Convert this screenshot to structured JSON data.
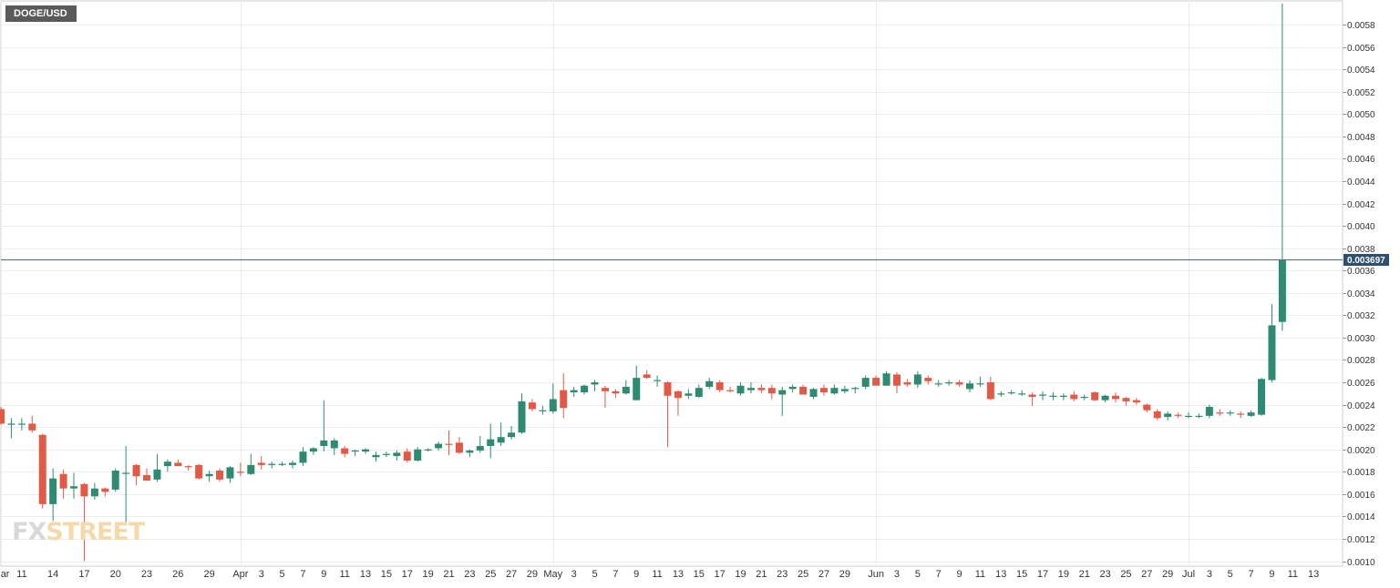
{
  "chart_data": {
    "type": "candlestick",
    "symbol": "DOGE/USD",
    "current_price": "0.003697",
    "ylim": [
      0.001,
      0.006
    ],
    "y_ticks": [
      "0.0010",
      "0.0012",
      "0.0014",
      "0.0016",
      "0.0018",
      "0.0020",
      "0.0022",
      "0.0024",
      "0.0026",
      "0.0028",
      "0.0030",
      "0.0032",
      "0.0034",
      "0.0036",
      "0.0038",
      "0.0040",
      "0.0042",
      "0.0044",
      "0.0046",
      "0.0048",
      "0.0050",
      "0.0052",
      "0.0054",
      "0.0056",
      "0.0058"
    ],
    "x_ticks": [
      {
        "label": "Mar",
        "day": 0
      },
      {
        "label": "11",
        "day": 2
      },
      {
        "label": "14",
        "day": 5
      },
      {
        "label": "17",
        "day": 8
      },
      {
        "label": "20",
        "day": 11
      },
      {
        "label": "23",
        "day": 14
      },
      {
        "label": "26",
        "day": 17
      },
      {
        "label": "29",
        "day": 20
      },
      {
        "label": "Apr",
        "day": 23
      },
      {
        "label": "3",
        "day": 25
      },
      {
        "label": "5",
        "day": 27
      },
      {
        "label": "7",
        "day": 29
      },
      {
        "label": "9",
        "day": 31
      },
      {
        "label": "11",
        "day": 33
      },
      {
        "label": "13",
        "day": 35
      },
      {
        "label": "15",
        "day": 37
      },
      {
        "label": "17",
        "day": 39
      },
      {
        "label": "19",
        "day": 41
      },
      {
        "label": "21",
        "day": 43
      },
      {
        "label": "23",
        "day": 45
      },
      {
        "label": "25",
        "day": 47
      },
      {
        "label": "27",
        "day": 49
      },
      {
        "label": "29",
        "day": 51
      },
      {
        "label": "May",
        "day": 53
      },
      {
        "label": "3",
        "day": 55
      },
      {
        "label": "5",
        "day": 57
      },
      {
        "label": "7",
        "day": 59
      },
      {
        "label": "9",
        "day": 61
      },
      {
        "label": "11",
        "day": 63
      },
      {
        "label": "13",
        "day": 65
      },
      {
        "label": "15",
        "day": 67
      },
      {
        "label": "17",
        "day": 69
      },
      {
        "label": "19",
        "day": 71
      },
      {
        "label": "21",
        "day": 73
      },
      {
        "label": "23",
        "day": 75
      },
      {
        "label": "25",
        "day": 77
      },
      {
        "label": "27",
        "day": 79
      },
      {
        "label": "29",
        "day": 81
      },
      {
        "label": "Jun",
        "day": 84
      },
      {
        "label": "3",
        "day": 86
      },
      {
        "label": "5",
        "day": 88
      },
      {
        "label": "7",
        "day": 90
      },
      {
        "label": "9",
        "day": 92
      },
      {
        "label": "11",
        "day": 94
      },
      {
        "label": "13",
        "day": 96
      },
      {
        "label": "15",
        "day": 98
      },
      {
        "label": "17",
        "day": 100
      },
      {
        "label": "19",
        "day": 102
      },
      {
        "label": "21",
        "day": 104
      },
      {
        "label": "23",
        "day": 106
      },
      {
        "label": "25",
        "day": 108
      },
      {
        "label": "27",
        "day": 110
      },
      {
        "label": "29",
        "day": 112
      },
      {
        "label": "Jul",
        "day": 114
      },
      {
        "label": "3",
        "day": 116
      },
      {
        "label": "5",
        "day": 118
      },
      {
        "label": "7",
        "day": 120
      },
      {
        "label": "9",
        "day": 122
      },
      {
        "label": "11",
        "day": 124
      },
      {
        "label": "13",
        "day": 126
      }
    ],
    "vertical_grid_days": [
      0,
      23,
      53,
      84,
      114
    ],
    "colors": {
      "up": "#2e8b72",
      "down": "#e05a45",
      "price_line": "#4a6a8a",
      "price_label_bg": "#2f4f6f",
      "grid": "#ececec"
    },
    "candles": [
      {
        "o": 0.00236,
        "h": 0.00238,
        "l": 0.00222,
        "c": 0.00223
      },
      {
        "o": 0.00222,
        "h": 0.00228,
        "l": 0.0021,
        "c": 0.00223
      },
      {
        "o": 0.00223,
        "h": 0.00228,
        "l": 0.00217,
        "c": 0.00223
      },
      {
        "o": 0.00223,
        "h": 0.0023,
        "l": 0.00215,
        "c": 0.00217
      },
      {
        "o": 0.00213,
        "h": 0.00214,
        "l": 0.00147,
        "c": 0.00151
      },
      {
        "o": 0.00151,
        "h": 0.00183,
        "l": 0.00136,
        "c": 0.00174
      },
      {
        "o": 0.00178,
        "h": 0.00182,
        "l": 0.00156,
        "c": 0.00165
      },
      {
        "o": 0.00165,
        "h": 0.00179,
        "l": 0.00156,
        "c": 0.00167
      },
      {
        "o": 0.00169,
        "h": 0.0017,
        "l": 0.001,
        "c": 0.00158
      },
      {
        "o": 0.00158,
        "h": 0.0017,
        "l": 0.00155,
        "c": 0.00165
      },
      {
        "o": 0.00165,
        "h": 0.00166,
        "l": 0.00158,
        "c": 0.00162
      },
      {
        "o": 0.00164,
        "h": 0.00183,
        "l": 0.00162,
        "c": 0.00181
      },
      {
        "o": 0.00179,
        "h": 0.00203,
        "l": 0.00133,
        "c": 0.00179
      },
      {
        "o": 0.00186,
        "h": 0.00187,
        "l": 0.00168,
        "c": 0.00176
      },
      {
        "o": 0.00177,
        "h": 0.00183,
        "l": 0.00174,
        "c": 0.00172
      },
      {
        "o": 0.00173,
        "h": 0.00196,
        "l": 0.00171,
        "c": 0.00182
      },
      {
        "o": 0.00185,
        "h": 0.00191,
        "l": 0.0018,
        "c": 0.00189
      },
      {
        "o": 0.00188,
        "h": 0.00191,
        "l": 0.00185,
        "c": 0.00185
      },
      {
        "o": 0.00185,
        "h": 0.00186,
        "l": 0.00181,
        "c": 0.00184
      },
      {
        "o": 0.00186,
        "h": 0.00187,
        "l": 0.00173,
        "c": 0.00174
      },
      {
        "o": 0.00176,
        "h": 0.00181,
        "l": 0.00171,
        "c": 0.00178
      },
      {
        "o": 0.00181,
        "h": 0.00183,
        "l": 0.00171,
        "c": 0.00173
      },
      {
        "o": 0.00174,
        "h": 0.00185,
        "l": 0.0017,
        "c": 0.00184
      },
      {
        "o": 0.0018,
        "h": 0.00188,
        "l": 0.00176,
        "c": 0.00179
      },
      {
        "o": 0.00178,
        "h": 0.00196,
        "l": 0.00177,
        "c": 0.00186
      },
      {
        "o": 0.00188,
        "h": 0.00194,
        "l": 0.00182,
        "c": 0.00186
      },
      {
        "o": 0.00186,
        "h": 0.00189,
        "l": 0.00183,
        "c": 0.00187
      },
      {
        "o": 0.00187,
        "h": 0.00189,
        "l": 0.00185,
        "c": 0.00187
      },
      {
        "o": 0.00186,
        "h": 0.0019,
        "l": 0.00183,
        "c": 0.00188
      },
      {
        "o": 0.00188,
        "h": 0.00202,
        "l": 0.00185,
        "c": 0.00198
      },
      {
        "o": 0.00198,
        "h": 0.00202,
        "l": 0.00195,
        "c": 0.00201
      },
      {
        "o": 0.00203,
        "h": 0.00244,
        "l": 0.00198,
        "c": 0.00208
      },
      {
        "o": 0.00201,
        "h": 0.0021,
        "l": 0.00195,
        "c": 0.00208
      },
      {
        "o": 0.00201,
        "h": 0.00203,
        "l": 0.00193,
        "c": 0.00196
      },
      {
        "o": 0.00198,
        "h": 0.002,
        "l": 0.00194,
        "c": 0.00199
      },
      {
        "o": 0.00198,
        "h": 0.00201,
        "l": 0.00196,
        "c": 0.002
      },
      {
        "o": 0.00193,
        "h": 0.00198,
        "l": 0.00189,
        "c": 0.00195
      },
      {
        "o": 0.00195,
        "h": 0.00198,
        "l": 0.00193,
        "c": 0.00196
      },
      {
        "o": 0.00194,
        "h": 0.00199,
        "l": 0.0019,
        "c": 0.00197
      },
      {
        "o": 0.00198,
        "h": 0.00201,
        "l": 0.00188,
        "c": 0.0019
      },
      {
        "o": 0.0019,
        "h": 0.00202,
        "l": 0.00189,
        "c": 0.002
      },
      {
        "o": 0.002,
        "h": 0.00201,
        "l": 0.00198,
        "c": 0.002
      },
      {
        "o": 0.00201,
        "h": 0.00207,
        "l": 0.00199,
        "c": 0.00205
      },
      {
        "o": 0.00205,
        "h": 0.00217,
        "l": 0.00195,
        "c": 0.00204
      },
      {
        "o": 0.00206,
        "h": 0.00211,
        "l": 0.00196,
        "c": 0.00197
      },
      {
        "o": 0.00197,
        "h": 0.002,
        "l": 0.00193,
        "c": 0.00199
      },
      {
        "o": 0.00199,
        "h": 0.00212,
        "l": 0.00197,
        "c": 0.00203
      },
      {
        "o": 0.00203,
        "h": 0.00223,
        "l": 0.00192,
        "c": 0.00209
      },
      {
        "o": 0.00206,
        "h": 0.00224,
        "l": 0.00203,
        "c": 0.00211
      },
      {
        "o": 0.00211,
        "h": 0.00221,
        "l": 0.00209,
        "c": 0.00215
      },
      {
        "o": 0.00215,
        "h": 0.0025,
        "l": 0.00214,
        "c": 0.00243
      },
      {
        "o": 0.00242,
        "h": 0.00245,
        "l": 0.00234,
        "c": 0.00236
      },
      {
        "o": 0.00235,
        "h": 0.00239,
        "l": 0.00231,
        "c": 0.00235
      },
      {
        "o": 0.00234,
        "h": 0.00259,
        "l": 0.00232,
        "c": 0.00245
      },
      {
        "o": 0.00253,
        "h": 0.00268,
        "l": 0.00228,
        "c": 0.00237
      },
      {
        "o": 0.00251,
        "h": 0.00256,
        "l": 0.00247,
        "c": 0.00253
      },
      {
        "o": 0.00251,
        "h": 0.00258,
        "l": 0.00249,
        "c": 0.00257
      },
      {
        "o": 0.00258,
        "h": 0.00262,
        "l": 0.00252,
        "c": 0.0026
      },
      {
        "o": 0.00255,
        "h": 0.00257,
        "l": 0.00237,
        "c": 0.00252
      },
      {
        "o": 0.00252,
        "h": 0.00254,
        "l": 0.00246,
        "c": 0.0025
      },
      {
        "o": 0.0025,
        "h": 0.00262,
        "l": 0.00249,
        "c": 0.00256
      },
      {
        "o": 0.00244,
        "h": 0.00275,
        "l": 0.00244,
        "c": 0.00264
      },
      {
        "o": 0.00267,
        "h": 0.00271,
        "l": 0.00263,
        "c": 0.00264
      },
      {
        "o": 0.00262,
        "h": 0.00266,
        "l": 0.00256,
        "c": 0.00262
      },
      {
        "o": 0.0026,
        "h": 0.00261,
        "l": 0.00202,
        "c": 0.00248
      },
      {
        "o": 0.00252,
        "h": 0.00253,
        "l": 0.0023,
        "c": 0.00246
      },
      {
        "o": 0.00248,
        "h": 0.00254,
        "l": 0.00245,
        "c": 0.0025
      },
      {
        "o": 0.00247,
        "h": 0.00258,
        "l": 0.00246,
        "c": 0.00255
      },
      {
        "o": 0.00256,
        "h": 0.00264,
        "l": 0.00254,
        "c": 0.00261
      },
      {
        "o": 0.0026,
        "h": 0.00262,
        "l": 0.00251,
        "c": 0.00253
      },
      {
        "o": 0.00253,
        "h": 0.00256,
        "l": 0.00251,
        "c": 0.00252
      },
      {
        "o": 0.0025,
        "h": 0.0026,
        "l": 0.00248,
        "c": 0.00257
      },
      {
        "o": 0.00253,
        "h": 0.0026,
        "l": 0.0025,
        "c": 0.00255
      },
      {
        "o": 0.00255,
        "h": 0.00258,
        "l": 0.0025,
        "c": 0.00253
      },
      {
        "o": 0.00255,
        "h": 0.00258,
        "l": 0.00245,
        "c": 0.0025
      },
      {
        "o": 0.00249,
        "h": 0.00256,
        "l": 0.0023,
        "c": 0.00253
      },
      {
        "o": 0.00254,
        "h": 0.00258,
        "l": 0.00251,
        "c": 0.00256
      },
      {
        "o": 0.00256,
        "h": 0.00258,
        "l": 0.0025,
        "c": 0.00249
      },
      {
        "o": 0.00247,
        "h": 0.00255,
        "l": 0.00245,
        "c": 0.00254
      },
      {
        "o": 0.00255,
        "h": 0.00258,
        "l": 0.00248,
        "c": 0.00251
      },
      {
        "o": 0.0025,
        "h": 0.00258,
        "l": 0.00249,
        "c": 0.00255
      },
      {
        "o": 0.00252,
        "h": 0.00257,
        "l": 0.0025,
        "c": 0.00254
      },
      {
        "o": 0.00254,
        "h": 0.00256,
        "l": 0.0025,
        "c": 0.00255
      },
      {
        "o": 0.00256,
        "h": 0.00266,
        "l": 0.00254,
        "c": 0.00264
      },
      {
        "o": 0.00264,
        "h": 0.00266,
        "l": 0.00259,
        "c": 0.00257
      },
      {
        "o": 0.00257,
        "h": 0.0027,
        "l": 0.00257,
        "c": 0.00268
      },
      {
        "o": 0.00267,
        "h": 0.00269,
        "l": 0.0025,
        "c": 0.00257
      },
      {
        "o": 0.0026,
        "h": 0.00263,
        "l": 0.00256,
        "c": 0.00258
      },
      {
        "o": 0.00258,
        "h": 0.0027,
        "l": 0.00255,
        "c": 0.00267
      },
      {
        "o": 0.00264,
        "h": 0.00266,
        "l": 0.00258,
        "c": 0.00261
      },
      {
        "o": 0.00258,
        "h": 0.00262,
        "l": 0.00256,
        "c": 0.00259
      },
      {
        "o": 0.00259,
        "h": 0.00262,
        "l": 0.00257,
        "c": 0.0026
      },
      {
        "o": 0.0026,
        "h": 0.00262,
        "l": 0.00256,
        "c": 0.00258
      },
      {
        "o": 0.00254,
        "h": 0.00262,
        "l": 0.00251,
        "c": 0.00259
      },
      {
        "o": 0.00259,
        "h": 0.00265,
        "l": 0.00256,
        "c": 0.00259
      },
      {
        "o": 0.0026,
        "h": 0.00265,
        "l": 0.00244,
        "c": 0.00245
      },
      {
        "o": 0.00249,
        "h": 0.00252,
        "l": 0.00247,
        "c": 0.0025
      },
      {
        "o": 0.00251,
        "h": 0.00253,
        "l": 0.00249,
        "c": 0.00251
      },
      {
        "o": 0.0025,
        "h": 0.00253,
        "l": 0.00248,
        "c": 0.0025
      },
      {
        "o": 0.00249,
        "h": 0.00251,
        "l": 0.00239,
        "c": 0.00247
      },
      {
        "o": 0.00248,
        "h": 0.00252,
        "l": 0.00244,
        "c": 0.00249
      },
      {
        "o": 0.00248,
        "h": 0.00251,
        "l": 0.00244,
        "c": 0.00248
      },
      {
        "o": 0.00247,
        "h": 0.0025,
        "l": 0.00244,
        "c": 0.00248
      },
      {
        "o": 0.00249,
        "h": 0.00252,
        "l": 0.00243,
        "c": 0.00245
      },
      {
        "o": 0.00247,
        "h": 0.00249,
        "l": 0.00244,
        "c": 0.00247
      },
      {
        "o": 0.00251,
        "h": 0.00252,
        "l": 0.00243,
        "c": 0.00244
      },
      {
        "o": 0.00244,
        "h": 0.00249,
        "l": 0.00242,
        "c": 0.00248
      },
      {
        "o": 0.00248,
        "h": 0.00251,
        "l": 0.00242,
        "c": 0.00245
      },
      {
        "o": 0.00246,
        "h": 0.00247,
        "l": 0.00239,
        "c": 0.00243
      },
      {
        "o": 0.00244,
        "h": 0.00246,
        "l": 0.0024,
        "c": 0.00242
      },
      {
        "o": 0.0024,
        "h": 0.00241,
        "l": 0.00233,
        "c": 0.00235
      },
      {
        "o": 0.00234,
        "h": 0.00236,
        "l": 0.00226,
        "c": 0.00228
      },
      {
        "o": 0.00229,
        "h": 0.00234,
        "l": 0.00226,
        "c": 0.00232
      },
      {
        "o": 0.00231,
        "h": 0.00233,
        "l": 0.00228,
        "c": 0.0023
      },
      {
        "o": 0.0023,
        "h": 0.00233,
        "l": 0.00228,
        "c": 0.0023
      },
      {
        "o": 0.0023,
        "h": 0.00232,
        "l": 0.00228,
        "c": 0.0023
      },
      {
        "o": 0.0023,
        "h": 0.0024,
        "l": 0.00228,
        "c": 0.00238
      },
      {
        "o": 0.00233,
        "h": 0.00236,
        "l": 0.0023,
        "c": 0.00232
      },
      {
        "o": 0.00233,
        "h": 0.00235,
        "l": 0.0023,
        "c": 0.00233
      },
      {
        "o": 0.00232,
        "h": 0.00234,
        "l": 0.00228,
        "c": 0.00231
      },
      {
        "o": 0.0023,
        "h": 0.00235,
        "l": 0.00229,
        "c": 0.00233
      },
      {
        "o": 0.00231,
        "h": 0.00264,
        "l": 0.0023,
        "c": 0.00263
      },
      {
        "o": 0.00262,
        "h": 0.0033,
        "l": 0.0026,
        "c": 0.00311
      },
      {
        "o": 0.00314,
        "h": 0.00599,
        "l": 0.00306,
        "c": 0.003697
      }
    ]
  },
  "labels": {
    "symbol": "DOGE/USD",
    "price_label": "0.003697",
    "logo_fx": "FX",
    "logo_street": "STREET"
  }
}
